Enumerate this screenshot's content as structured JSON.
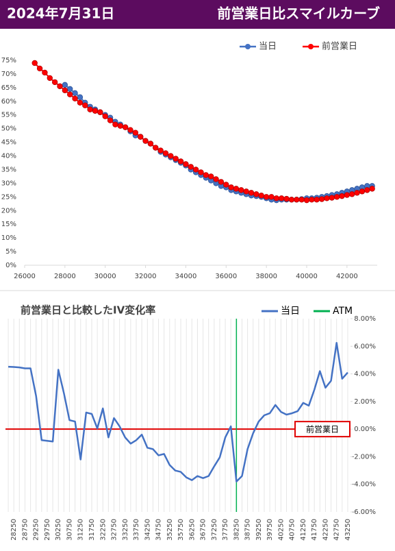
{
  "header": {
    "date": "2024年7月31日",
    "title": "前営業日比スマイルカーブ"
  },
  "chart_data": [
    {
      "type": "line",
      "markers": true,
      "grid": false,
      "legend": "top",
      "xlim": [
        26000,
        43500
      ],
      "xticks": [
        26000,
        28000,
        30000,
        32000,
        34000,
        36000,
        38000,
        40000,
        42000
      ],
      "ylim": [
        0,
        75
      ],
      "yticks": [
        {
          "value": 0,
          "label": "0%"
        },
        {
          "value": 5,
          "label": "5%"
        },
        {
          "value": 10,
          "label": "10%"
        },
        {
          "value": 15,
          "label": "15%"
        },
        {
          "value": 20,
          "label": "20%"
        },
        {
          "value": 25,
          "label": "25%"
        },
        {
          "value": 30,
          "label": "30%"
        },
        {
          "value": 35,
          "label": "35%"
        },
        {
          "value": 40,
          "label": "40%"
        },
        {
          "value": 45,
          "label": "45%"
        },
        {
          "value": 50,
          "label": "50%"
        },
        {
          "value": 55,
          "label": "55%"
        },
        {
          "value": 60,
          "label": "60%"
        },
        {
          "value": 65,
          "label": "65%"
        },
        {
          "value": 70,
          "label": "70%"
        },
        {
          "value": 75,
          "label": "75%"
        }
      ],
      "series": [
        {
          "name": "当日",
          "color": "#4472c4",
          "x": [
            28000,
            28250,
            28500,
            28750,
            29000,
            29250,
            29500,
            29750,
            30000,
            30250,
            30500,
            30750,
            31000,
            31250,
            31500,
            31750,
            32000,
            32250,
            32500,
            32750,
            33000,
            33250,
            33500,
            33750,
            34000,
            34250,
            34500,
            34750,
            35000,
            35250,
            35500,
            35750,
            36000,
            36250,
            36500,
            36750,
            37000,
            37250,
            37500,
            37750,
            38000,
            38250,
            38500,
            38750,
            39000,
            39250,
            39500,
            39750,
            40000,
            40250,
            40500,
            40750,
            41000,
            41250,
            41500,
            41750,
            42000,
            42250,
            42500,
            42750,
            43000,
            43250
          ],
          "values": [
            66,
            64.5,
            63,
            61.5,
            59.5,
            58,
            57,
            56,
            55,
            54,
            52.5,
            51.5,
            50.5,
            49,
            47.5,
            47,
            45.5,
            44.5,
            43,
            41.5,
            40.5,
            39.5,
            38.5,
            37.5,
            36.5,
            35,
            34,
            33,
            32,
            31,
            30,
            29,
            28.5,
            27.5,
            27,
            26.5,
            26,
            25.5,
            25.3,
            25,
            24.5,
            24,
            23.8,
            24,
            24,
            24,
            24,
            24.2,
            24.5,
            24.5,
            24.7,
            25,
            25.3,
            25.7,
            26,
            26.5,
            27,
            27.5,
            28,
            28.5,
            29,
            29
          ]
        },
        {
          "name": "前営業日",
          "color": "#ff0000",
          "x": [
            26500,
            26750,
            27000,
            27250,
            27500,
            27750,
            28000,
            28250,
            28500,
            28750,
            29000,
            29250,
            29500,
            29750,
            30000,
            30250,
            30500,
            30750,
            31000,
            31250,
            31500,
            31750,
            32000,
            32250,
            32500,
            32750,
            33000,
            33250,
            33500,
            33750,
            34000,
            34250,
            34500,
            34750,
            35000,
            35250,
            35500,
            35750,
            36000,
            36250,
            36500,
            36750,
            37000,
            37250,
            37500,
            37750,
            38000,
            38250,
            38500,
            38750,
            39000,
            39250,
            39500,
            39750,
            40000,
            40250,
            40500,
            40750,
            41000,
            41250,
            41500,
            41750,
            42000,
            42250,
            42500,
            42750,
            43000,
            43250
          ],
          "values": [
            74,
            72,
            70.5,
            68.5,
            67,
            65.5,
            64,
            62.5,
            61,
            59.5,
            58.5,
            57,
            56.5,
            56,
            54.5,
            53,
            51.5,
            51,
            50.5,
            49.5,
            48.5,
            47,
            45.5,
            44.5,
            43,
            42,
            41,
            40,
            39,
            38,
            37,
            36,
            35,
            34,
            33,
            32.5,
            31.5,
            30.5,
            29.5,
            28.5,
            28,
            27.5,
            27,
            26.5,
            26,
            25.5,
            25,
            25,
            24.5,
            24.5,
            24.3,
            24,
            24,
            24,
            23.8,
            24,
            24,
            24.2,
            24.5,
            24.7,
            25,
            25.3,
            25.7,
            26,
            26.5,
            27,
            27.5,
            28
          ]
        }
      ]
    },
    {
      "type": "line",
      "title": "前営業日と比較したIV変化率",
      "grid": "x",
      "legend": "top",
      "categories": [
        null,
        28250,
        null,
        28750,
        null,
        29250,
        null,
        29750,
        null,
        30250,
        null,
        30750,
        null,
        31250,
        null,
        31750,
        null,
        32250,
        null,
        32750,
        null,
        33250,
        null,
        33750,
        null,
        34250,
        null,
        34750,
        null,
        35250,
        null,
        35750,
        null,
        36250,
        null,
        36750,
        null,
        37250,
        null,
        37750,
        null,
        38250,
        null,
        38750,
        null,
        39250,
        null,
        39750,
        null,
        40250,
        null,
        40750,
        null,
        41250,
        null,
        41750,
        null,
        42250,
        null,
        42750,
        null,
        43250
      ],
      "y2lim": [
        -6,
        8
      ],
      "y2ticks": [
        {
          "value": -6,
          "label": "-6.00%"
        },
        {
          "value": -4,
          "label": "-4.00%"
        },
        {
          "value": -2,
          "label": "-2.00%"
        },
        {
          "value": 0,
          "label": "0.00%"
        },
        {
          "value": 2,
          "label": "2.00%"
        },
        {
          "value": 4,
          "label": "4.00%"
        },
        {
          "value": 6,
          "label": "6.00%"
        },
        {
          "value": 8,
          "label": "8.00%"
        }
      ],
      "series": [
        {
          "name": "当日",
          "color": "#4472c4",
          "axis": "y2",
          "values": [
            4.52,
            4.5,
            4.47,
            4.4,
            4.4,
            2.4,
            -0.8,
            -0.85,
            -0.9,
            4.3,
            2.6,
            0.65,
            0.55,
            -2.2,
            1.2,
            1.1,
            0.05,
            1.5,
            -0.6,
            0.8,
            0.2,
            -0.6,
            -1.05,
            -0.8,
            -0.4,
            -1.35,
            -1.45,
            -1.9,
            -1.8,
            -2.6,
            -3.0,
            -3.1,
            -3.5,
            -3.7,
            -3.4,
            -3.55,
            -3.4,
            -2.7,
            -2.05,
            -0.6,
            0.2,
            -3.8,
            -3.4,
            -1.45,
            -0.3,
            0.55,
            1.0,
            1.15,
            1.75,
            1.25,
            1.05,
            1.15,
            1.3,
            1.9,
            1.7,
            2.85,
            4.2,
            3.0,
            3.5,
            6.25,
            3.65,
            4.1
          ]
        }
      ],
      "atm": {
        "name": "ATM",
        "color": "#00b050",
        "at": 38250
      },
      "reference_line": {
        "label": "前営業日",
        "value": 0,
        "color": "#e00000"
      }
    }
  ]
}
